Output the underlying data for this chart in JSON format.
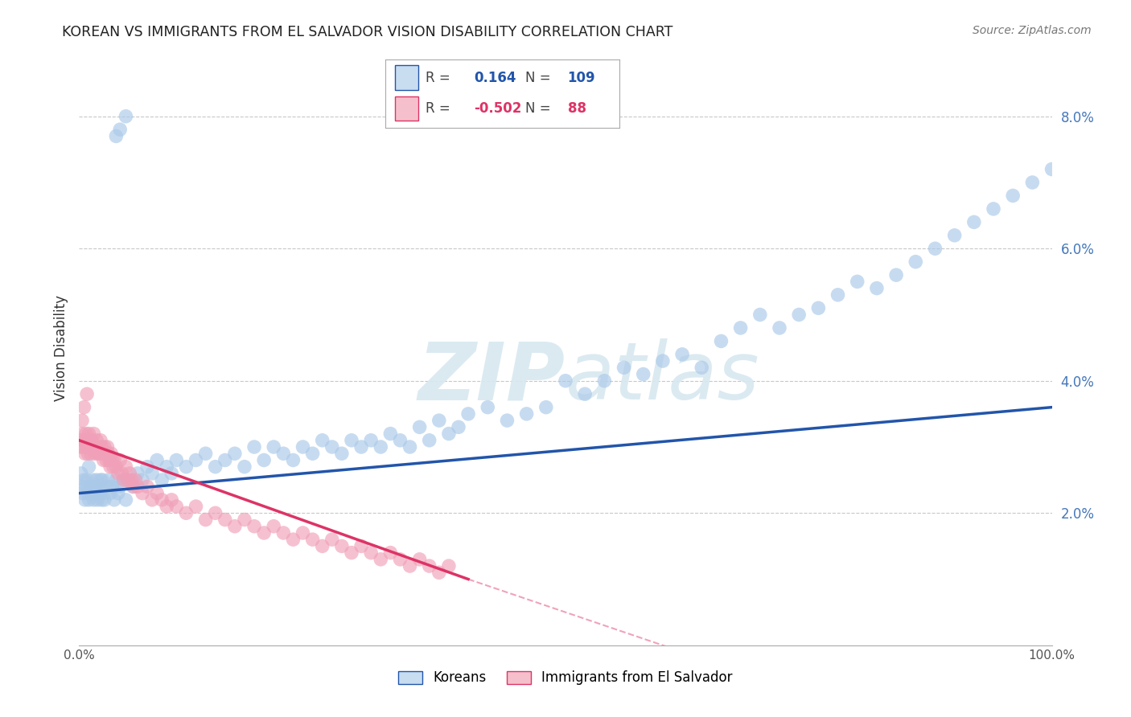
{
  "title": "KOREAN VS IMMIGRANTS FROM EL SALVADOR VISION DISABILITY CORRELATION CHART",
  "source": "Source: ZipAtlas.com",
  "ylabel": "Vision Disability",
  "yticks": [
    "2.0%",
    "4.0%",
    "6.0%",
    "8.0%"
  ],
  "ytick_vals": [
    0.02,
    0.04,
    0.06,
    0.08
  ],
  "xrange": [
    0.0,
    1.0
  ],
  "yrange": [
    0.0,
    0.09
  ],
  "korean_R": "0.164",
  "korean_N": "109",
  "salvador_R": "-0.502",
  "salvador_N": "88",
  "korean_color": "#aac9e8",
  "korean_line_color": "#2255aa",
  "salvador_color": "#f0a0b8",
  "salvador_line_color": "#dd3366",
  "background_color": "#ffffff",
  "grid_color": "#c8c8c8",
  "legend_box_color_korean": "#c8ddf0",
  "legend_box_color_salvador": "#f5c0cc",
  "korean_trend": [
    0.0,
    0.023,
    1.0,
    0.036
  ],
  "salvador_trend_solid": [
    0.0,
    0.031,
    0.4,
    0.01
  ],
  "salvador_trend_dash": [
    0.4,
    0.01,
    1.0,
    -0.02
  ],
  "korean_x": [
    0.002,
    0.003,
    0.004,
    0.005,
    0.006,
    0.007,
    0.008,
    0.009,
    0.01,
    0.01,
    0.012,
    0.013,
    0.014,
    0.015,
    0.016,
    0.017,
    0.018,
    0.019,
    0.02,
    0.021,
    0.022,
    0.023,
    0.024,
    0.025,
    0.026,
    0.028,
    0.03,
    0.032,
    0.034,
    0.036,
    0.038,
    0.04,
    0.042,
    0.045,
    0.048,
    0.05,
    0.055,
    0.06,
    0.065,
    0.07,
    0.075,
    0.08,
    0.085,
    0.09,
    0.095,
    0.1,
    0.11,
    0.12,
    0.13,
    0.14,
    0.15,
    0.16,
    0.17,
    0.18,
    0.19,
    0.2,
    0.21,
    0.22,
    0.23,
    0.24,
    0.25,
    0.26,
    0.27,
    0.28,
    0.29,
    0.3,
    0.31,
    0.32,
    0.33,
    0.34,
    0.35,
    0.36,
    0.37,
    0.38,
    0.39,
    0.4,
    0.42,
    0.44,
    0.46,
    0.48,
    0.5,
    0.52,
    0.54,
    0.56,
    0.58,
    0.6,
    0.62,
    0.64,
    0.66,
    0.68,
    0.7,
    0.72,
    0.74,
    0.76,
    0.78,
    0.8,
    0.82,
    0.84,
    0.86,
    0.88,
    0.9,
    0.92,
    0.94,
    0.96,
    0.98,
    1.0,
    0.038,
    0.042,
    0.048
  ],
  "korean_y": [
    0.026,
    0.024,
    0.023,
    0.025,
    0.022,
    0.024,
    0.025,
    0.023,
    0.022,
    0.027,
    0.024,
    0.023,
    0.025,
    0.022,
    0.024,
    0.023,
    0.025,
    0.022,
    0.024,
    0.023,
    0.025,
    0.022,
    0.025,
    0.023,
    0.022,
    0.024,
    0.025,
    0.023,
    0.024,
    0.022,
    0.025,
    0.023,
    0.024,
    0.025,
    0.022,
    0.025,
    0.024,
    0.026,
    0.025,
    0.027,
    0.026,
    0.028,
    0.025,
    0.027,
    0.026,
    0.028,
    0.027,
    0.028,
    0.029,
    0.027,
    0.028,
    0.029,
    0.027,
    0.03,
    0.028,
    0.03,
    0.029,
    0.028,
    0.03,
    0.029,
    0.031,
    0.03,
    0.029,
    0.031,
    0.03,
    0.031,
    0.03,
    0.032,
    0.031,
    0.03,
    0.033,
    0.031,
    0.034,
    0.032,
    0.033,
    0.035,
    0.036,
    0.034,
    0.035,
    0.036,
    0.04,
    0.038,
    0.04,
    0.042,
    0.041,
    0.043,
    0.044,
    0.042,
    0.046,
    0.048,
    0.05,
    0.048,
    0.05,
    0.051,
    0.053,
    0.055,
    0.054,
    0.056,
    0.058,
    0.06,
    0.062,
    0.064,
    0.066,
    0.068,
    0.07,
    0.072,
    0.077,
    0.078,
    0.08
  ],
  "salvador_x": [
    0.001,
    0.002,
    0.003,
    0.004,
    0.005,
    0.006,
    0.007,
    0.008,
    0.009,
    0.01,
    0.01,
    0.011,
    0.012,
    0.013,
    0.014,
    0.015,
    0.016,
    0.017,
    0.018,
    0.019,
    0.02,
    0.021,
    0.022,
    0.023,
    0.024,
    0.025,
    0.026,
    0.027,
    0.028,
    0.029,
    0.03,
    0.031,
    0.032,
    0.033,
    0.034,
    0.035,
    0.036,
    0.038,
    0.04,
    0.042,
    0.044,
    0.046,
    0.048,
    0.05,
    0.052,
    0.054,
    0.056,
    0.058,
    0.06,
    0.065,
    0.07,
    0.075,
    0.08,
    0.085,
    0.09,
    0.095,
    0.1,
    0.11,
    0.12,
    0.13,
    0.14,
    0.15,
    0.16,
    0.17,
    0.18,
    0.19,
    0.2,
    0.21,
    0.22,
    0.23,
    0.24,
    0.25,
    0.26,
    0.27,
    0.28,
    0.29,
    0.3,
    0.31,
    0.32,
    0.33,
    0.34,
    0.35,
    0.36,
    0.37,
    0.38,
    0.003,
    0.005,
    0.008
  ],
  "salvador_y": [
    0.03,
    0.031,
    0.032,
    0.03,
    0.031,
    0.029,
    0.032,
    0.03,
    0.029,
    0.031,
    0.032,
    0.03,
    0.029,
    0.031,
    0.03,
    0.032,
    0.029,
    0.03,
    0.031,
    0.029,
    0.03,
    0.029,
    0.031,
    0.03,
    0.029,
    0.028,
    0.03,
    0.029,
    0.028,
    0.03,
    0.029,
    0.028,
    0.027,
    0.029,
    0.028,
    0.027,
    0.028,
    0.027,
    0.026,
    0.028,
    0.026,
    0.025,
    0.027,
    0.025,
    0.026,
    0.025,
    0.024,
    0.025,
    0.024,
    0.023,
    0.024,
    0.022,
    0.023,
    0.022,
    0.021,
    0.022,
    0.021,
    0.02,
    0.021,
    0.019,
    0.02,
    0.019,
    0.018,
    0.019,
    0.018,
    0.017,
    0.018,
    0.017,
    0.016,
    0.017,
    0.016,
    0.015,
    0.016,
    0.015,
    0.014,
    0.015,
    0.014,
    0.013,
    0.014,
    0.013,
    0.012,
    0.013,
    0.012,
    0.011,
    0.012,
    0.034,
    0.036,
    0.038
  ]
}
